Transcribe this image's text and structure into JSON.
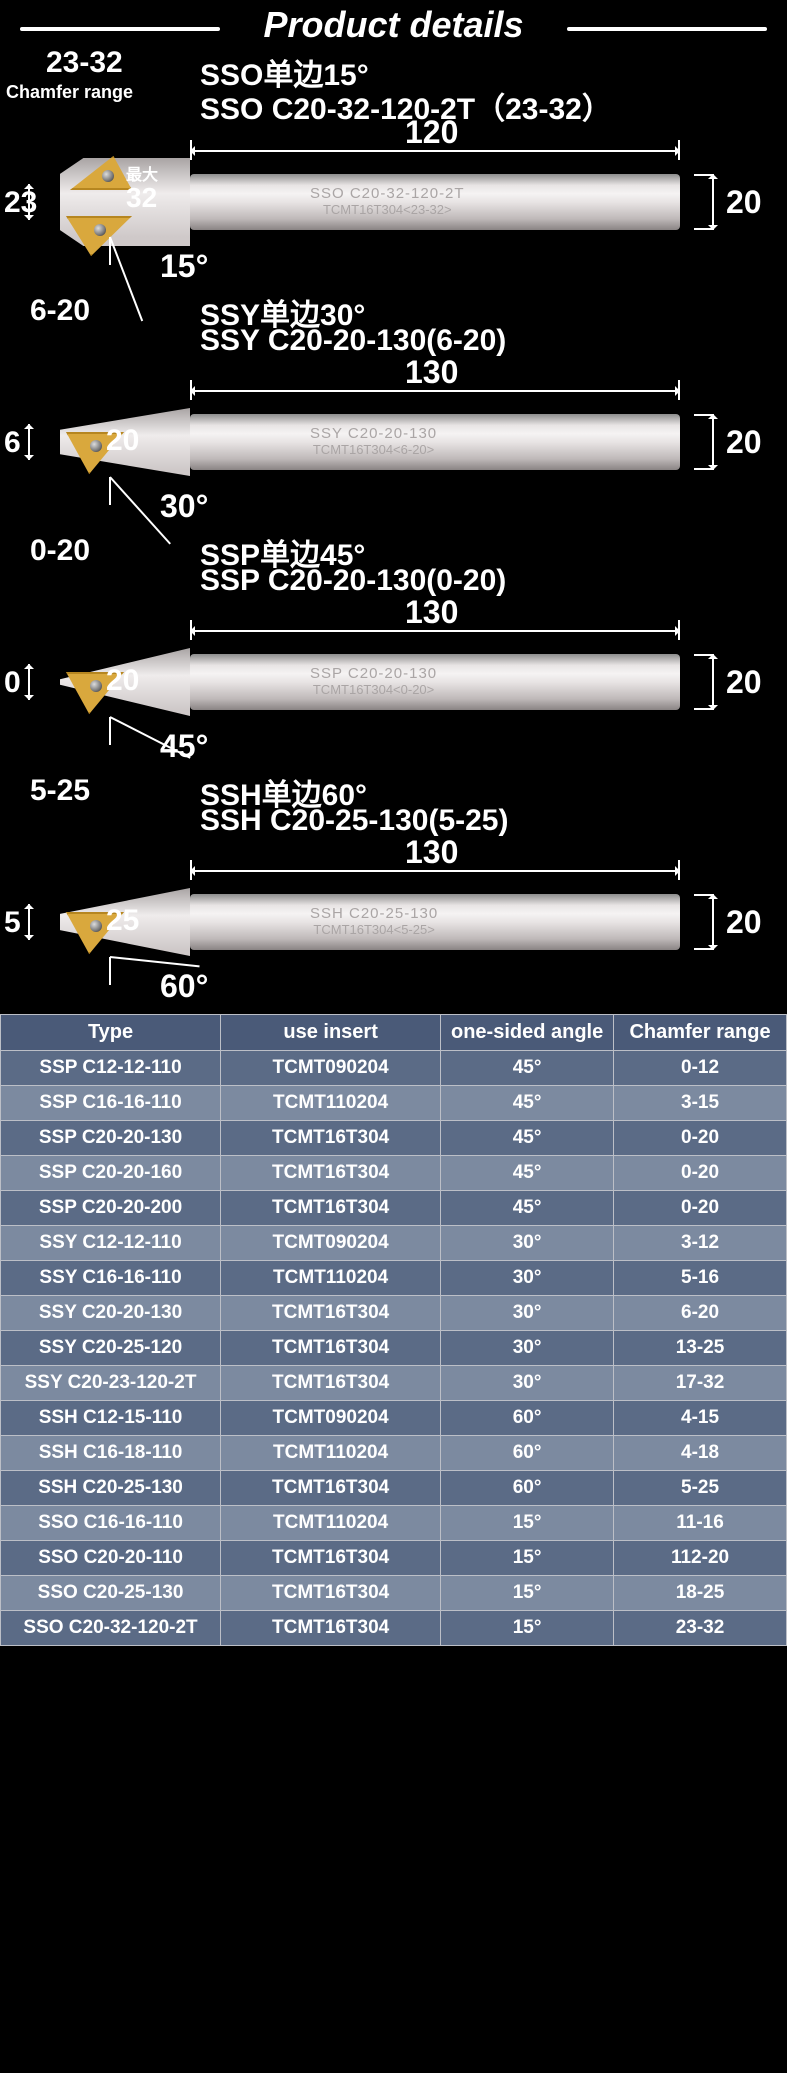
{
  "header": "Product details",
  "chamfer_range_label": "Chamfer range",
  "diagrams": [
    {
      "range": "23-32",
      "title1": "SSO单边15°",
      "title2": "SSO C20-32-120-2T（23-32）",
      "length": "120",
      "shank_dia": "20",
      "tip": "23",
      "head": "32",
      "head_prefix": "最大",
      "angle": "15°",
      "engrave1": "SSO C20-32-120-2T",
      "engrave2": "TCMT16T304<23-32>",
      "head_style": "sso",
      "angle_deg": 15
    },
    {
      "range": "6-20",
      "title1": "SSY单边30°",
      "title2": "SSY C20-20-130(6-20)",
      "length": "130",
      "shank_dia": "20",
      "tip": "6",
      "head": "20",
      "angle": "30°",
      "engrave1": "SSY C20-20-130",
      "engrave2": "TCMT16T304<6-20>",
      "head_style": "ssy",
      "angle_deg": 30
    },
    {
      "range": "0-20",
      "title1": "SSP单边45°",
      "title2": "SSP C20-20-130(0-20)",
      "length": "130",
      "shank_dia": "20",
      "tip": "0",
      "head": "20",
      "angle": "45°",
      "engrave1": "SSP C20-20-130",
      "engrave2": "TCMT16T304<0-20>",
      "head_style": "ssp",
      "angle_deg": 45
    },
    {
      "range": "5-25",
      "title1": "SSH单边60°",
      "title2": "SSH C20-25-130(5-25)",
      "length": "130",
      "shank_dia": "20",
      "tip": "5",
      "head": "25",
      "angle": "60°",
      "engrave1": "SSH C20-25-130",
      "engrave2": "TCMT16T304<5-25>",
      "head_style": "ssh",
      "angle_deg": 60
    }
  ],
  "table": {
    "columns": [
      "Type",
      "use insert",
      "one-sided angle",
      "Chamfer range"
    ],
    "rows": [
      [
        "SSP C12-12-110",
        "TCMT090204",
        "45°",
        "0-12"
      ],
      [
        "SSP C16-16-110",
        "TCMT110204",
        "45°",
        "3-15"
      ],
      [
        "SSP C20-20-130",
        "TCMT16T304",
        "45°",
        "0-20"
      ],
      [
        "SSP C20-20-160",
        "TCMT16T304",
        "45°",
        "0-20"
      ],
      [
        "SSP C20-20-200",
        "TCMT16T304",
        "45°",
        "0-20"
      ],
      [
        "SSY C12-12-110",
        "TCMT090204",
        "30°",
        "3-12"
      ],
      [
        "SSY C16-16-110",
        "TCMT110204",
        "30°",
        "5-16"
      ],
      [
        "SSY C20-20-130",
        "TCMT16T304",
        "30°",
        "6-20"
      ],
      [
        "SSY C20-25-120",
        "TCMT16T304",
        "30°",
        "13-25"
      ],
      [
        "SSY C20-23-120-2T",
        "TCMT16T304",
        "30°",
        "17-32"
      ],
      [
        "SSH C12-15-110",
        "TCMT090204",
        "60°",
        "4-15"
      ],
      [
        "SSH C16-18-110",
        "TCMT110204",
        "60°",
        "4-18"
      ],
      [
        "SSH C20-25-130",
        "TCMT16T304",
        "60°",
        "5-25"
      ],
      [
        "SSO C16-16-110",
        "TCMT110204",
        "15°",
        "11-16"
      ],
      [
        "SSO C20-20-110",
        "TCMT16T304",
        "15°",
        "112-20"
      ],
      [
        "SSO C20-25-130",
        "TCMT16T304",
        "15°",
        "18-25"
      ],
      [
        "SSO C20-32-120-2T",
        "TCMT16T304",
        "15°",
        "23-32"
      ]
    ]
  },
  "colors": {
    "insert": "#d9a83d",
    "insert_edge": "#b68620"
  }
}
